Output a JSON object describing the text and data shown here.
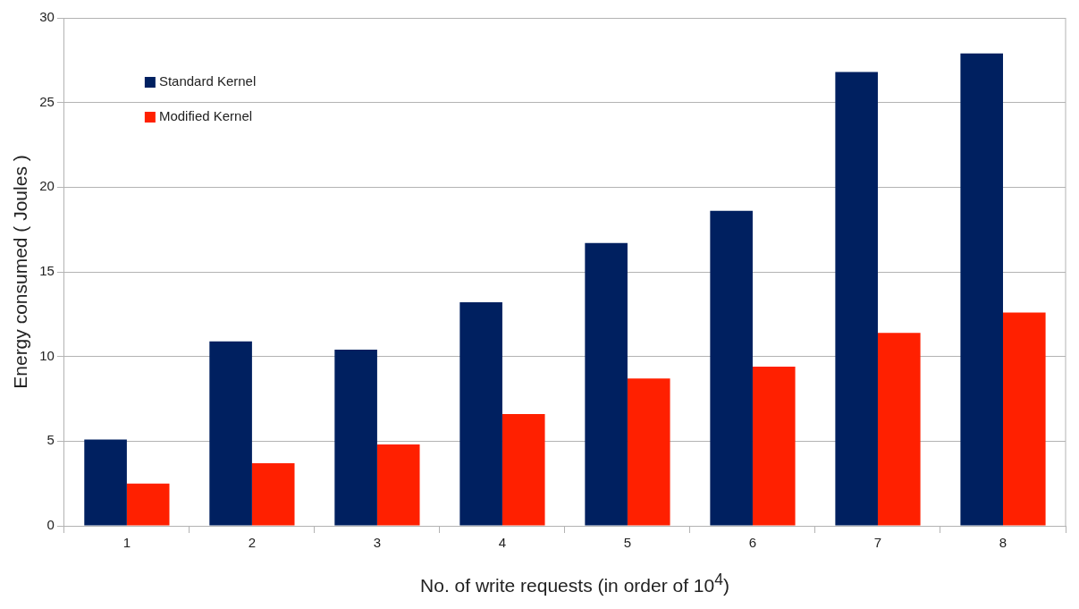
{
  "chart_data": {
    "type": "bar",
    "xlabel": "No. of write requests (in order of 10$^{4}$)",
    "ylabel": "Energy consumed ( Joules )",
    "categories": [
      "1",
      "2",
      "3",
      "4",
      "5",
      "6",
      "7",
      "8"
    ],
    "series": [
      {
        "name": "Standard Kernel",
        "color": "#002060",
        "values": [
          5.1,
          10.9,
          10.4,
          13.2,
          16.7,
          18.6,
          26.8,
          27.9
        ]
      },
      {
        "name": "Modified Kernel",
        "color": "#ff2000",
        "values": [
          2.5,
          3.7,
          4.8,
          6.6,
          8.7,
          9.4,
          11.4,
          12.6
        ]
      }
    ],
    "ylim": [
      0,
      30
    ],
    "yticks": [
      0,
      5,
      10,
      15,
      20,
      25,
      30
    ],
    "grid": "y",
    "legend": "top left"
  }
}
